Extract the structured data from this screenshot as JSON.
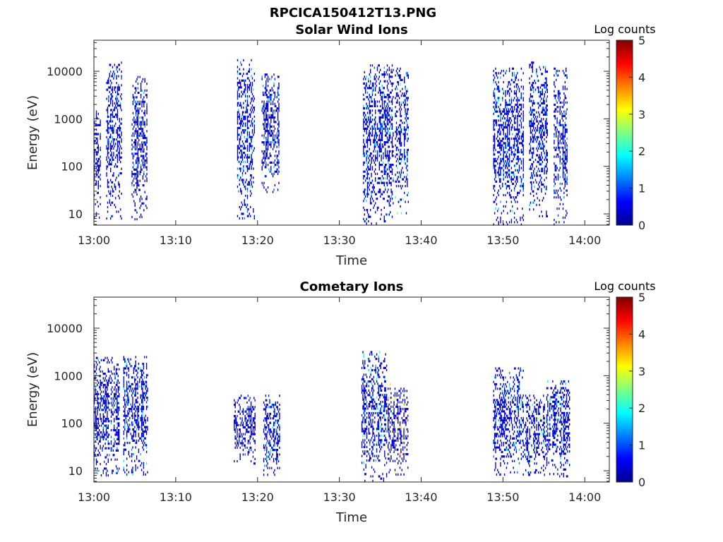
{
  "figure": {
    "title": "RPCICA150412T13.PNG"
  },
  "colorscale": {
    "stops": [
      "#00008f",
      "#0000ff",
      "#0080ff",
      "#00ffff",
      "#80ff80",
      "#ffff00",
      "#ff8000",
      "#ff0000",
      "#800000"
    ]
  },
  "chart_data": [
    {
      "type": "heatmap",
      "title": "Solar Wind Ions",
      "xlabel": "Time",
      "ylabel": "Energy (eV)",
      "x_ticks": [
        "13:00",
        "13:10",
        "13:20",
        "13:30",
        "13:40",
        "13:50",
        "14:00"
      ],
      "x_tick_minutes": [
        0,
        10,
        20,
        30,
        40,
        50,
        60
      ],
      "xlim_minutes": [
        0,
        63
      ],
      "y_scale": "log",
      "y_ticks": [
        "10",
        "100",
        "1000",
        "10000"
      ],
      "y_tick_values": [
        10,
        100,
        1000,
        10000
      ],
      "ylim": [
        5.8,
        45000
      ],
      "colorbar": {
        "label": "Log counts",
        "ticks": [
          "0",
          "1",
          "2",
          "3",
          "4",
          "5"
        ],
        "range": [
          0,
          5
        ]
      },
      "bursts": [
        {
          "t_start": 0.0,
          "t_end": 0.9,
          "e_min": 8,
          "e_max": 1500,
          "peak": 1.0
        },
        {
          "t_start": 1.5,
          "t_end": 3.5,
          "e_min": 8,
          "e_max": 16000,
          "peak": 1.7
        },
        {
          "t_start": 4.6,
          "t_end": 6.6,
          "e_min": 8,
          "e_max": 8000,
          "peak": 1.7
        },
        {
          "t_start": 17.5,
          "t_end": 19.7,
          "e_min": 8,
          "e_max": 18000,
          "peak": 2.0
        },
        {
          "t_start": 20.5,
          "t_end": 22.7,
          "e_min": 25,
          "e_max": 9000,
          "peak": 1.7
        },
        {
          "t_start": 32.9,
          "t_end": 36.7,
          "e_min": 6,
          "e_max": 14000,
          "peak": 2.0
        },
        {
          "t_start": 36.8,
          "t_end": 38.5,
          "e_min": 10,
          "e_max": 12000,
          "peak": 2.6
        },
        {
          "t_start": 48.8,
          "t_end": 52.6,
          "e_min": 6,
          "e_max": 12000,
          "peak": 2.0
        },
        {
          "t_start": 53.2,
          "t_end": 55.6,
          "e_min": 8,
          "e_max": 16000,
          "peak": 1.9
        },
        {
          "t_start": 56.2,
          "t_end": 58.0,
          "e_min": 6,
          "e_max": 12000,
          "peak": 1.7
        }
      ]
    },
    {
      "type": "heatmap",
      "title": "Cometary Ions",
      "xlabel": "Time",
      "ylabel": "Energy (eV)",
      "x_ticks": [
        "13:00",
        "13:10",
        "13:20",
        "13:30",
        "13:40",
        "13:50",
        "14:00"
      ],
      "x_tick_minutes": [
        0,
        10,
        20,
        30,
        40,
        50,
        60
      ],
      "xlim_minutes": [
        0,
        63
      ],
      "y_scale": "log",
      "y_ticks": [
        "10",
        "100",
        "1000",
        "10000"
      ],
      "y_tick_values": [
        10,
        100,
        1000,
        10000
      ],
      "ylim": [
        5.8,
        45000
      ],
      "colorbar": {
        "label": "Log counts",
        "ticks": [
          "0",
          "1",
          "2",
          "3",
          "4",
          "5"
        ],
        "range": [
          0,
          5
        ]
      },
      "bursts": [
        {
          "t_start": 0.0,
          "t_end": 3.2,
          "e_min": 8,
          "e_max": 2500,
          "peak": 1.7
        },
        {
          "t_start": 3.6,
          "t_end": 6.7,
          "e_min": 8,
          "e_max": 2600,
          "peak": 2.0
        },
        {
          "t_start": 17.1,
          "t_end": 19.8,
          "e_min": 15,
          "e_max": 400,
          "peak": 1.1
        },
        {
          "t_start": 20.7,
          "t_end": 22.8,
          "e_min": 8,
          "e_max": 400,
          "peak": 2.0
        },
        {
          "t_start": 32.7,
          "t_end": 35.9,
          "e_min": 6,
          "e_max": 3300,
          "peak": 2.4
        },
        {
          "t_start": 35.9,
          "t_end": 38.5,
          "e_min": 8,
          "e_max": 700,
          "peak": 4.1
        },
        {
          "t_start": 48.8,
          "t_end": 52.6,
          "e_min": 8,
          "e_max": 1500,
          "peak": 2.0
        },
        {
          "t_start": 52.6,
          "t_end": 55.3,
          "e_min": 8,
          "e_max": 400,
          "peak": 2.9
        },
        {
          "t_start": 55.3,
          "t_end": 58.2,
          "e_min": 8,
          "e_max": 800,
          "peak": 2.6
        }
      ]
    }
  ]
}
